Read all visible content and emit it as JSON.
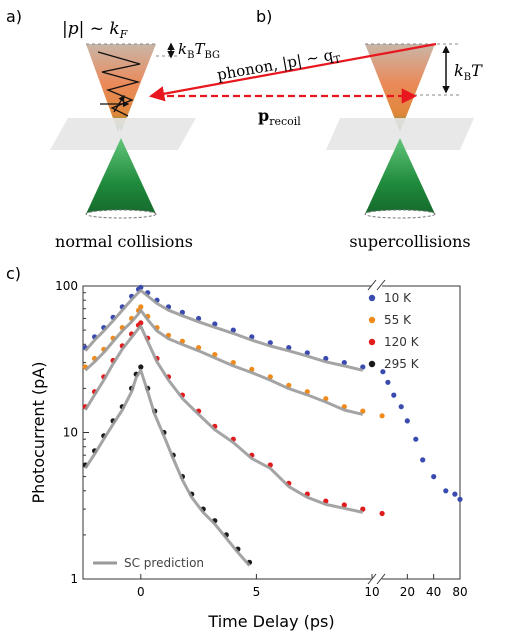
{
  "panel_a": {
    "label": "a)",
    "momentum": "|p| ~ k",
    "momentum_sub": "F",
    "energy": "k",
    "energy_sub": "B",
    "energy_tail": "T",
    "energy_tail_sub": "BG",
    "caption": "normal collisions"
  },
  "panel_b": {
    "label": "b)",
    "phonon": "phonon, |p| ~ q",
    "phonon_sub": "T",
    "recoil": "p",
    "recoil_sub": "recoil",
    "energy": "k",
    "energy_sub": "B",
    "energy_tail": "T",
    "caption": "supercollisions"
  },
  "colors": {
    "cone_top": "#e9865a",
    "cone_bottom": "#1f8a3c",
    "red_arrow": "#e8171f",
    "series_10K": "#3a4bb0",
    "series_55K": "#f08a1c",
    "series_120K": "#e01b1b",
    "series_295K": "#1a1a1a",
    "fit_line": "#9a9a9a"
  },
  "chart_data": {
    "panel_label": "c)",
    "type": "scatter",
    "xlabel": "Time Delay (ps)",
    "ylabel": "Photocurrent (pA)",
    "yscale": "log",
    "ylim": [
      1,
      100
    ],
    "xlim_linear": [
      -2.5,
      10
    ],
    "xlim_log_break": [
      10,
      80
    ],
    "xticks": [
      "0",
      "5",
      "10",
      "20",
      "40",
      "80"
    ],
    "yticks": [
      "1",
      "10",
      "100"
    ],
    "legend_position": "top-right",
    "fit_label": "SC prediction",
    "series": [
      {
        "name": "10 K",
        "color": "#3a4bb0",
        "x": [
          -2.4,
          -2.0,
          -1.6,
          -1.2,
          -0.8,
          -0.4,
          -0.1,
          0,
          0.3,
          0.7,
          1.2,
          1.8,
          2.5,
          3.2,
          4.0,
          4.8,
          5.6,
          6.4,
          7.2,
          8.0,
          8.8,
          9.6,
          10.5,
          12,
          14,
          17,
          20,
          25,
          30,
          40,
          55,
          70,
          80
        ],
        "y": [
          38,
          45,
          52,
          61,
          72,
          85,
          95,
          98,
          90,
          80,
          72,
          66,
          60,
          55,
          50,
          45,
          41,
          38,
          35,
          32,
          30,
          28,
          26,
          22,
          18,
          15,
          12,
          9,
          6.5,
          5,
          4,
          3.8,
          3.5
        ]
      },
      {
        "name": "55 K",
        "color": "#f08a1c",
        "x": [
          -2.4,
          -2.0,
          -1.6,
          -1.2,
          -0.8,
          -0.4,
          -0.1,
          0,
          0.3,
          0.7,
          1.2,
          1.8,
          2.5,
          3.2,
          4.0,
          4.8,
          5.6,
          6.4,
          7.2,
          8.0,
          8.8,
          9.6,
          10.3
        ],
        "y": [
          28,
          32,
          37,
          44,
          52,
          60,
          68,
          72,
          62,
          52,
          46,
          42,
          38,
          34,
          30,
          27,
          24,
          21,
          19,
          17,
          15,
          14,
          13
        ]
      },
      {
        "name": "120 K",
        "color": "#e01b1b",
        "x": [
          -2.4,
          -2.0,
          -1.6,
          -1.2,
          -0.8,
          -0.4,
          -0.1,
          0,
          0.3,
          0.7,
          1.2,
          1.8,
          2.5,
          3.2,
          4.0,
          4.8,
          5.6,
          6.4,
          7.2,
          8.0,
          8.8,
          9.6,
          10.3
        ],
        "y": [
          15,
          19,
          24,
          31,
          39,
          47,
          54,
          56,
          44,
          32,
          24,
          18,
          14,
          11,
          9,
          7,
          6,
          4.5,
          3.8,
          3.4,
          3.2,
          3.0,
          2.8
        ]
      },
      {
        "name": "295 K",
        "color": "#1a1a1a",
        "x": [
          -2.4,
          -2.0,
          -1.6,
          -1.2,
          -0.8,
          -0.4,
          -0.2,
          0,
          0.3,
          0.6,
          1.0,
          1.4,
          1.8,
          2.2,
          2.7,
          3.2,
          3.7,
          4.2,
          4.7
        ],
        "y": [
          6,
          7.5,
          9.5,
          12,
          15,
          20,
          25,
          28,
          20,
          14,
          10,
          7,
          5,
          3.8,
          3,
          2.5,
          2,
          1.6,
          1.3
        ]
      }
    ]
  }
}
